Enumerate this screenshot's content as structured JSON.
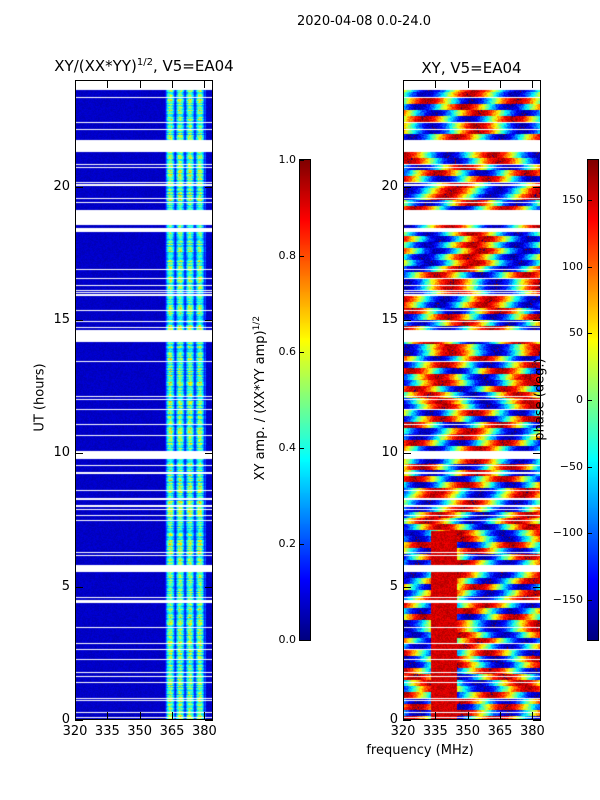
{
  "suptitle": "2020-04-08 0.0-24.0",
  "xlabel": "frequency (MHz)",
  "chart_data": [
    {
      "type": "heatmap",
      "title_main": "XY/(XX*YY)",
      "title_sup": "1/2",
      "title_suffix": ", V5=EA04",
      "xlabel": "frequency (MHz)",
      "ylabel": "UT (hours)",
      "xlim": [
        320,
        384
      ],
      "ylim": [
        0,
        24
      ],
      "xticks": [
        320,
        335,
        350,
        365,
        380
      ],
      "yticks": [
        0,
        5,
        10,
        15,
        20
      ],
      "colormap": "jet",
      "colorbar": {
        "label_main": "XY amp. / (XX*YY amp)",
        "label_sup": "1/2",
        "range": [
          0.0,
          1.0
        ],
        "ticks": [
          "0.0",
          "0.2",
          "0.4",
          "0.6",
          "0.8",
          "1.0"
        ]
      },
      "description_values": {
        "background_level": 0.05,
        "bright_band_MHz": [
          362,
          381
        ],
        "bright_band_level": [
          0.3,
          0.65
        ]
      }
    },
    {
      "type": "heatmap",
      "title": "XY, V5=EA04",
      "xlim": [
        320,
        384
      ],
      "ylim": [
        0,
        24
      ],
      "xticks": [
        320,
        335,
        350,
        365,
        380
      ],
      "yticks": [
        0,
        5,
        10,
        15,
        20
      ],
      "colormap": "jet",
      "colorbar": {
        "label": "phase (deg.)",
        "range": [
          -180,
          180
        ],
        "ticks": [
          "150",
          "100",
          "50",
          "0",
          "−50",
          "−100",
          "−150"
        ],
        "tick_values": [
          150,
          100,
          50,
          0,
          -50,
          -100,
          -150
        ]
      }
    }
  ]
}
